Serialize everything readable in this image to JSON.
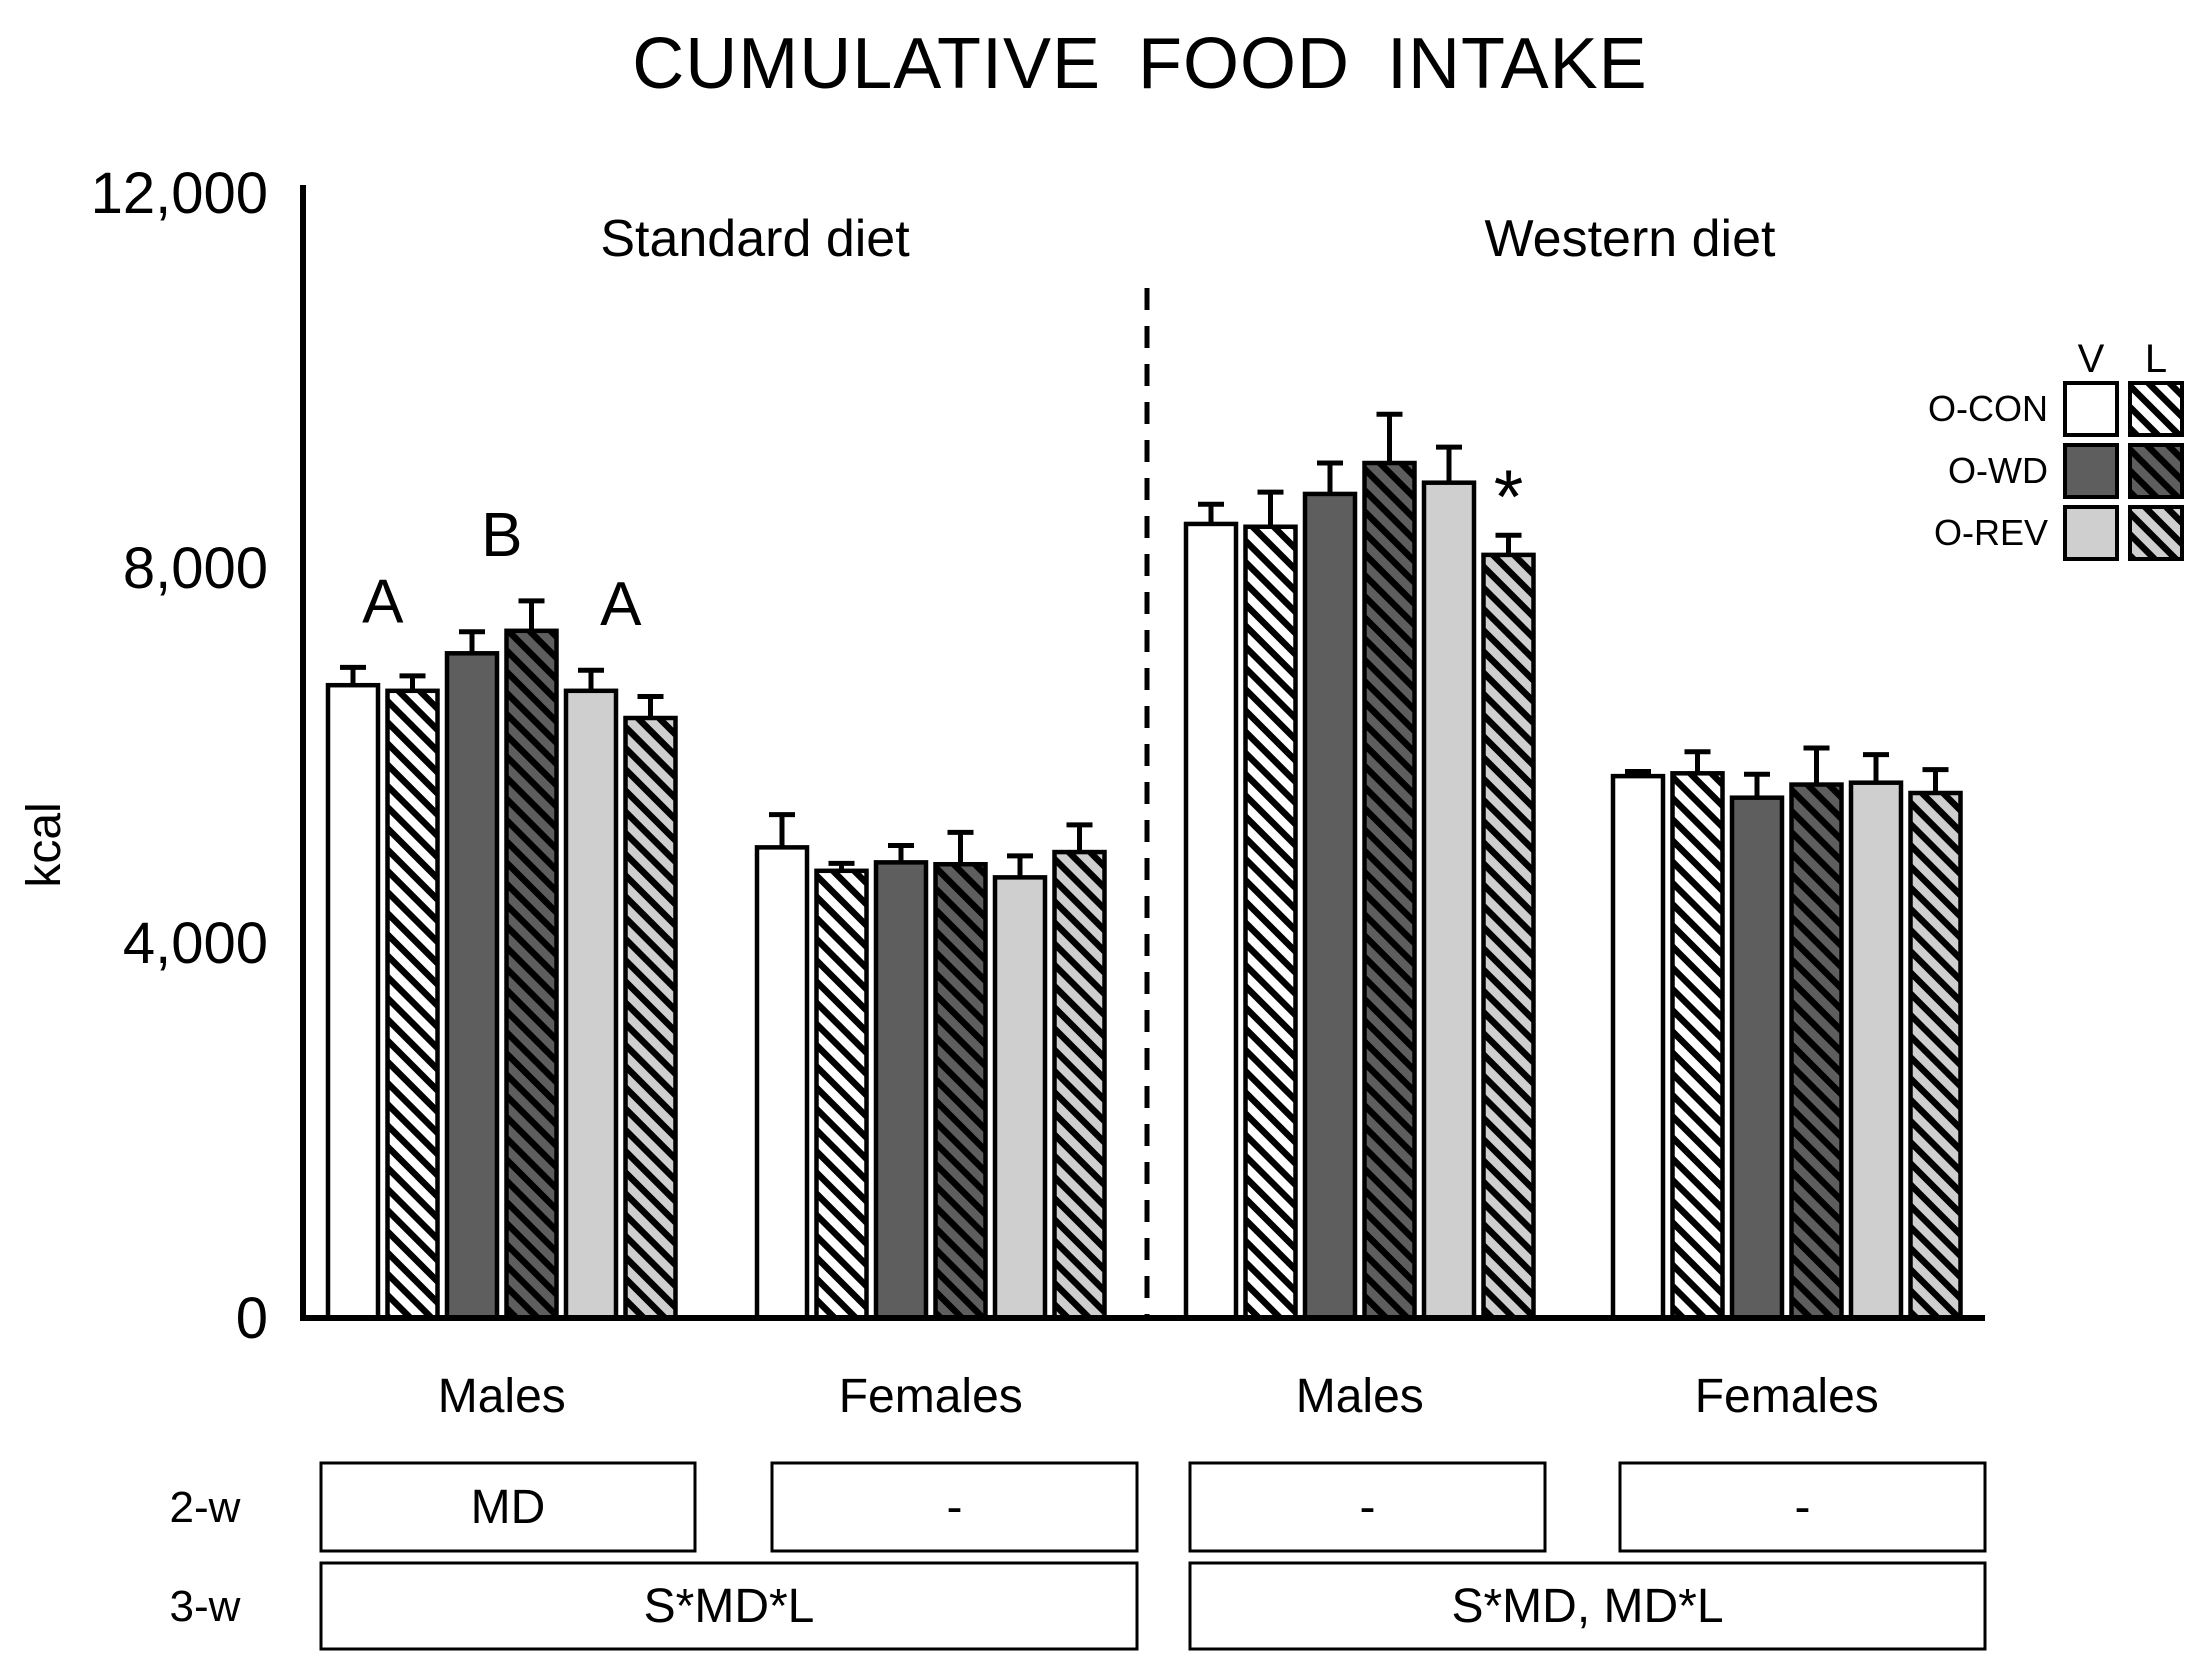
{
  "title": "CUMULATIVE FOOD INTAKE",
  "y_axis": {
    "label": "kcal",
    "ticks": [
      {
        "text": "12,000",
        "value": 12000
      },
      {
        "text": "8,000",
        "value": 8000
      },
      {
        "text": "4,000",
        "value": 4000
      },
      {
        "text": "0",
        "value": 0
      }
    ]
  },
  "legend": {
    "col_headers": [
      "V",
      "L"
    ],
    "rows": [
      {
        "label": "O-CON",
        "color": "#ffffff"
      },
      {
        "label": "O-WD",
        "color": "#5e5e5e"
      },
      {
        "label": "O-REV",
        "color": "#cfcfcf"
      }
    ]
  },
  "colors": {
    "outline": "#000000",
    "con": "#ffffff",
    "wd": "#5e5e5e",
    "rev": "#cfcfcf"
  },
  "stats": {
    "row_labels": [
      "2-w",
      "3-w"
    ],
    "group_boxes": [
      "MD",
      "-",
      "-",
      "-"
    ],
    "panel_boxes": [
      "S*MD*L",
      "S*MD, MD*L"
    ]
  },
  "chart_data": {
    "type": "bar",
    "title": "CUMULATIVE FOOD INTAKE",
    "ylabel": "kcal",
    "ylim": [
      0,
      12000
    ],
    "yticks": [
      0,
      4000,
      8000,
      12000
    ],
    "legend_position": "top-right",
    "series": [
      {
        "name": "O-CON V",
        "color": "#ffffff",
        "hatch": false
      },
      {
        "name": "O-CON L",
        "color": "#ffffff",
        "hatch": true
      },
      {
        "name": "O-WD V",
        "color": "#5e5e5e",
        "hatch": false
      },
      {
        "name": "O-WD L",
        "color": "#5e5e5e",
        "hatch": true
      },
      {
        "name": "O-REV V",
        "color": "#cfcfcf",
        "hatch": false
      },
      {
        "name": "O-REV L",
        "color": "#cfcfcf",
        "hatch": true
      }
    ],
    "groups": [
      {
        "panel": "Standard diet",
        "category": "Males",
        "values": [
          6750,
          6690,
          7090,
          7330,
          6690,
          6400
        ],
        "se": [
          190,
          160,
          230,
          320,
          220,
          230
        ],
        "pair_annotations": [
          "A",
          "B",
          "A"
        ],
        "bar_annotations": []
      },
      {
        "panel": "Standard diet",
        "category": "Females",
        "values": [
          5020,
          4770,
          4860,
          4840,
          4700,
          4970
        ],
        "se": [
          350,
          80,
          180,
          340,
          230,
          290
        ],
        "pair_annotations": [],
        "bar_annotations": []
      },
      {
        "panel": "Western diet",
        "category": "Males",
        "values": [
          8470,
          8440,
          8790,
          9120,
          8910,
          8140
        ],
        "se": [
          210,
          370,
          330,
          520,
          380,
          210
        ],
        "pair_annotations": [],
        "bar_annotations": [
          {
            "bar": 5,
            "text": "*"
          }
        ]
      },
      {
        "panel": "Western diet",
        "category": "Females",
        "values": [
          5780,
          5810,
          5550,
          5690,
          5710,
          5600
        ],
        "se": [
          50,
          230,
          250,
          390,
          300,
          250
        ],
        "pair_annotations": [],
        "bar_annotations": []
      }
    ],
    "panels": [
      "Standard diet",
      "Western diet"
    ],
    "errorbars": "se, upper only",
    "grid": false
  }
}
